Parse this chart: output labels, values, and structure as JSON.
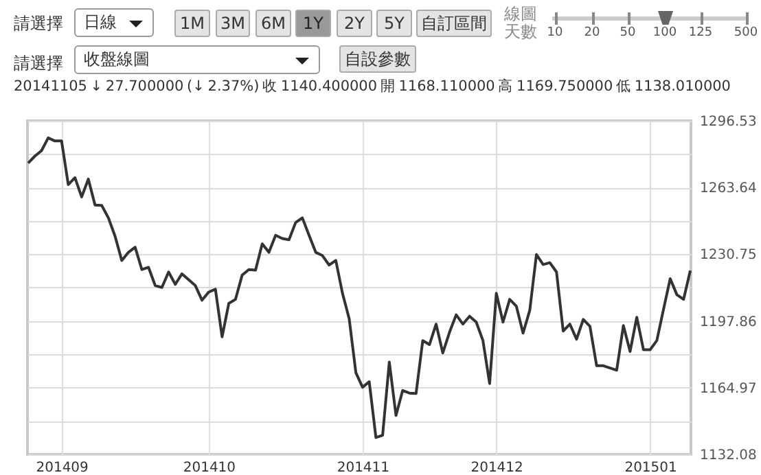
{
  "chart_data": {
    "type": "line",
    "subtitle": "20141105  ↓ 27.700000 (↓ 2.37%)      收 1140.400000      開 1168.110000      高 1169.750000      低 1138.010000",
    "annotations": [
      "請選擇",
      "日線",
      "1M",
      "3M",
      "6M",
      "1Y",
      "2Y",
      "5Y",
      "自訂區間",
      "線圖天數",
      "10",
      "20",
      "50",
      "100",
      "125",
      "500",
      "請選擇",
      "收盤線圖",
      "自設參數"
    ],
    "categories": [
      null,
      null,
      null,
      null,
      null,
      "201409",
      null,
      null,
      null,
      null,
      null,
      null,
      null,
      null,
      null,
      null,
      null,
      null,
      null,
      null,
      null,
      null,
      null,
      null,
      null,
      null,
      null,
      "201410",
      null,
      null,
      null,
      null,
      null,
      null,
      null,
      null,
      null,
      null,
      null,
      null,
      null,
      null,
      null,
      null,
      null,
      null,
      null,
      null,
      null,
      null,
      "201411",
      null,
      null,
      null,
      null,
      null,
      null,
      null,
      null,
      null,
      null,
      null,
      null,
      null,
      null,
      null,
      null,
      null,
      null,
      null,
      "201412",
      null,
      null,
      null,
      null,
      null,
      null,
      null,
      null,
      null,
      null,
      null,
      null,
      null,
      null,
      null,
      null,
      null,
      null,
      null,
      null,
      null,
      null,
      "201501",
      null,
      null,
      null,
      null,
      null,
      null
    ],
    "series": [
      {
        "color": "#333333",
        "values": [
          1275.7,
          1279.1,
          1281.8,
          1288.1,
          1286.6,
          1286.6,
          1265.1,
          1268.5,
          1259.0,
          1267.8,
          1255.0,
          1254.8,
          1248.7,
          1239.6,
          1227.7,
          1231.7,
          1234.2,
          1223.2,
          1224.3,
          1215.3,
          1214.4,
          1222.0,
          1215.9,
          1221.1,
          1218.2,
          1215.3,
          1208.1,
          1212.1,
          1213.5,
          1190.0,
          1206.5,
          1208.5,
          1220.5,
          1223.2,
          1222.9,
          1235.9,
          1231.7,
          1240.1,
          1238.5,
          1237.9,
          1246.4,
          1248.7,
          1240.1,
          1231.7,
          1230.1,
          1225.4,
          1227.7,
          1211.5,
          1199.0,
          1172.4,
          1165.2,
          1167.9,
          1140.4,
          1141.5,
          1177.6,
          1151.3,
          1163.6,
          1162.3,
          1162.1,
          1188.2,
          1186.2,
          1196.3,
          1182.1,
          1192.3,
          1200.9,
          1196.3,
          1200.2,
          1197.3,
          1188.2,
          1167.0,
          1211.5,
          1197.3,
          1208.5,
          1205.1,
          1191.9,
          1203.1,
          1230.6,
          1225.7,
          1226.6,
          1222.0,
          1192.9,
          1196.3,
          1188.9,
          1198.6,
          1195.2,
          1175.8,
          1175.8,
          1174.7,
          1173.6,
          1195.6,
          1182.8,
          1199.7,
          1183.7,
          1183.7,
          1188.2,
          1203.6,
          1218.7,
          1210.8,
          1208.5,
          1222.7
        ]
      }
    ],
    "ylim": [
      1132.08,
      1296.53
    ],
    "yticks": [
      1132.08,
      {
        "value": 1148.525,
        "label": null
      },
      1164.97,
      {
        "value": 1181.415,
        "label": null
      },
      1197.86,
      {
        "value": 1214.305,
        "label": null
      },
      1230.75,
      {
        "value": 1247.195,
        "label": null
      },
      1263.64,
      {
        "value": 1280.085,
        "label": null
      },
      1296.53
    ],
    "grid": true,
    "marker": "none",
    "line_style": "solid"
  }
}
